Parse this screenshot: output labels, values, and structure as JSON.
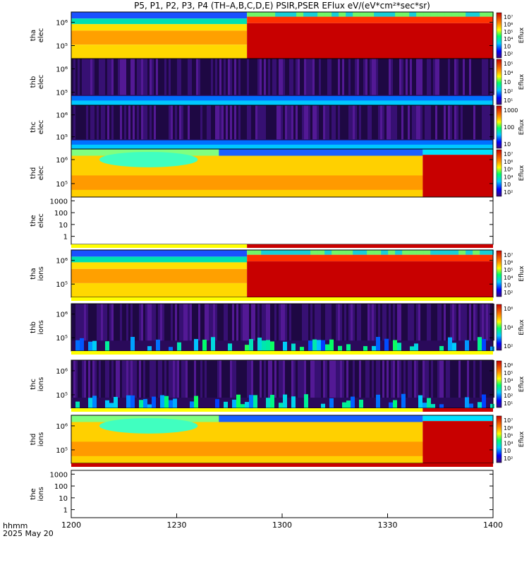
{
  "title": "P5, P1, P2, P3, P4 (TH–A,B,C,D,E) PSIR,PSER EFlux eV/(eV*cm²*sec*sr)",
  "xaxis": {
    "label1": "hhmm",
    "label2": "2025 May 20",
    "ticks": [
      "1200",
      "1230",
      "1300",
      "1330",
      "1400"
    ]
  },
  "colorbar_label": "Eflux",
  "colors": {
    "red": "#c80000",
    "dark_red": "#a00000",
    "yellow": "#ffff00",
    "purple": "#2a0a5a",
    "blue": "#0040ff"
  },
  "chart_data": {
    "type": "heatmap",
    "x_range": [
      "12:00",
      "14:00"
    ],
    "panels": [
      {
        "label1": "tha",
        "label2": "elec",
        "yticks": [
          "10⁶",
          "10⁵"
        ],
        "cbar_ticks": [
          "10⁷",
          "10⁶",
          "10⁵",
          "10⁴",
          "10⁳",
          "10²"
        ],
        "pattern": "tha",
        "switch_time": "12:50"
      },
      {
        "label1": "thb",
        "label2": "elec",
        "yticks": [
          "10⁶",
          "10⁵"
        ],
        "cbar_ticks": [
          "10⁵",
          "10⁴",
          "10⁳",
          "10²",
          "10¹"
        ],
        "pattern": "noise_e"
      },
      {
        "label1": "thc",
        "label2": "elec",
        "yticks": [
          "10⁶",
          "10⁵"
        ],
        "cbar_ticks": [
          "1000",
          "100",
          "10"
        ],
        "pattern": "noise_e"
      },
      {
        "label1": "thd",
        "label2": "elec",
        "yticks": [
          "10⁶",
          "10⁵"
        ],
        "cbar_ticks": [
          "10⁷",
          "10⁶",
          "10⁵",
          "10⁴",
          "10⁳",
          "10²"
        ],
        "pattern": "thd",
        "switch_time": "13:40"
      },
      {
        "label1": "the",
        "label2": "elec",
        "yticks": [
          "1000",
          "100",
          "10",
          "1"
        ],
        "cbar_ticks": [],
        "pattern": "empty"
      },
      {
        "label1": "tha",
        "label2": "ions",
        "yticks": [
          "10⁶",
          "10⁵"
        ],
        "cbar_ticks": [
          "10⁷",
          "10⁶",
          "10⁵",
          "10⁴",
          "10⁳",
          "10²"
        ],
        "pattern": "tha",
        "switch_time": "12:50"
      },
      {
        "label1": "thb",
        "label2": "ions",
        "yticks": [
          "10⁶",
          "10⁵"
        ],
        "cbar_ticks": [
          "10⁶",
          "10⁴",
          "10²"
        ],
        "pattern": "noise_i"
      },
      {
        "label1": "thc",
        "label2": "ions",
        "yticks": [
          "10⁶",
          "10⁵"
        ],
        "cbar_ticks": [
          "10⁶",
          "10⁵",
          "10⁴",
          "10⁳",
          "10²",
          "10¹"
        ],
        "pattern": "noise_i"
      },
      {
        "label1": "thd",
        "label2": "ions",
        "yticks": [
          "10⁶",
          "10⁵"
        ],
        "cbar_ticks": [
          "10⁷",
          "10⁶",
          "10⁵",
          "10⁴",
          "10⁳",
          "10²"
        ],
        "pattern": "thd",
        "switch_time": "13:40"
      },
      {
        "label1": "the",
        "label2": "ions",
        "yticks": [
          "1000",
          "100",
          "10",
          "1"
        ],
        "cbar_ticks": [],
        "pattern": "empty"
      }
    ],
    "mode_bars": [
      {
        "after_panel": 4,
        "segments": [
          {
            "start": "12:00",
            "end": "12:50",
            "color": "yellow"
          },
          {
            "start": "12:50",
            "end": "14:00",
            "color": "red"
          }
        ]
      },
      {
        "after_panel": 5,
        "segments": [
          {
            "start": "12:00",
            "end": "14:00",
            "color": "yellow"
          }
        ]
      },
      {
        "after_panel": 6,
        "segments": [
          {
            "start": "12:00",
            "end": "14:00",
            "color": "yellow"
          }
        ]
      },
      {
        "after_panel": 7,
        "segments": [
          {
            "start": "12:00",
            "end": "13:40",
            "color": "yellow"
          },
          {
            "start": "13:40",
            "end": "14:00",
            "color": "red"
          }
        ]
      },
      {
        "after_panel": 8,
        "segments": [
          {
            "start": "12:00",
            "end": "14:00",
            "color": "red"
          }
        ]
      }
    ]
  }
}
